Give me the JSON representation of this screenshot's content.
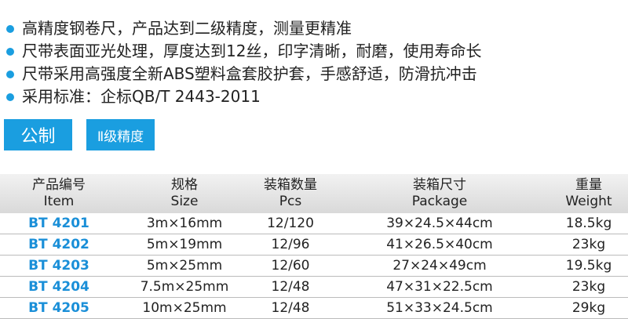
{
  "bullets": [
    "高精度钢卷尺，产品达到二级精度，测量更精准",
    "尺带表面亚光处理，厚度达到12丝，印字清晰，耐磨，使用寿命长",
    "尺带采用高强度全新ABS塑料盒套胶护套，手感舒适，防滑抗冲击",
    "采用标准：企标QB/T 2443-2011"
  ],
  "tags": [
    "公制",
    "Ⅱ级精度"
  ],
  "table": {
    "headers": [
      {
        "zh": "产品编号",
        "en": "Item"
      },
      {
        "zh": "规格",
        "en": "Size"
      },
      {
        "zh": "装箱数量",
        "en": "Pcs"
      },
      {
        "zh": "装箱尺寸",
        "en": "Package"
      },
      {
        "zh": "重量",
        "en": "Weight"
      }
    ],
    "rows": [
      [
        "BT 4201",
        "3m×16mm",
        "12/120",
        "39×24.5×44cm",
        "18.5kg"
      ],
      [
        "BT 4202",
        "5m×19mm",
        "12/96",
        "41×26.5×40cm",
        "23kg"
      ],
      [
        "BT 4203",
        "5m×25mm",
        "12/60",
        "27×24×49cm",
        "19.5kg"
      ],
      [
        "BT 4204",
        "7.5m×25mm",
        "12/48",
        "47×31×22.5cm",
        "23kg"
      ],
      [
        "BT 4205",
        "10m×25mm",
        "12/48",
        "51×33×24.5cm",
        "29kg"
      ]
    ]
  }
}
